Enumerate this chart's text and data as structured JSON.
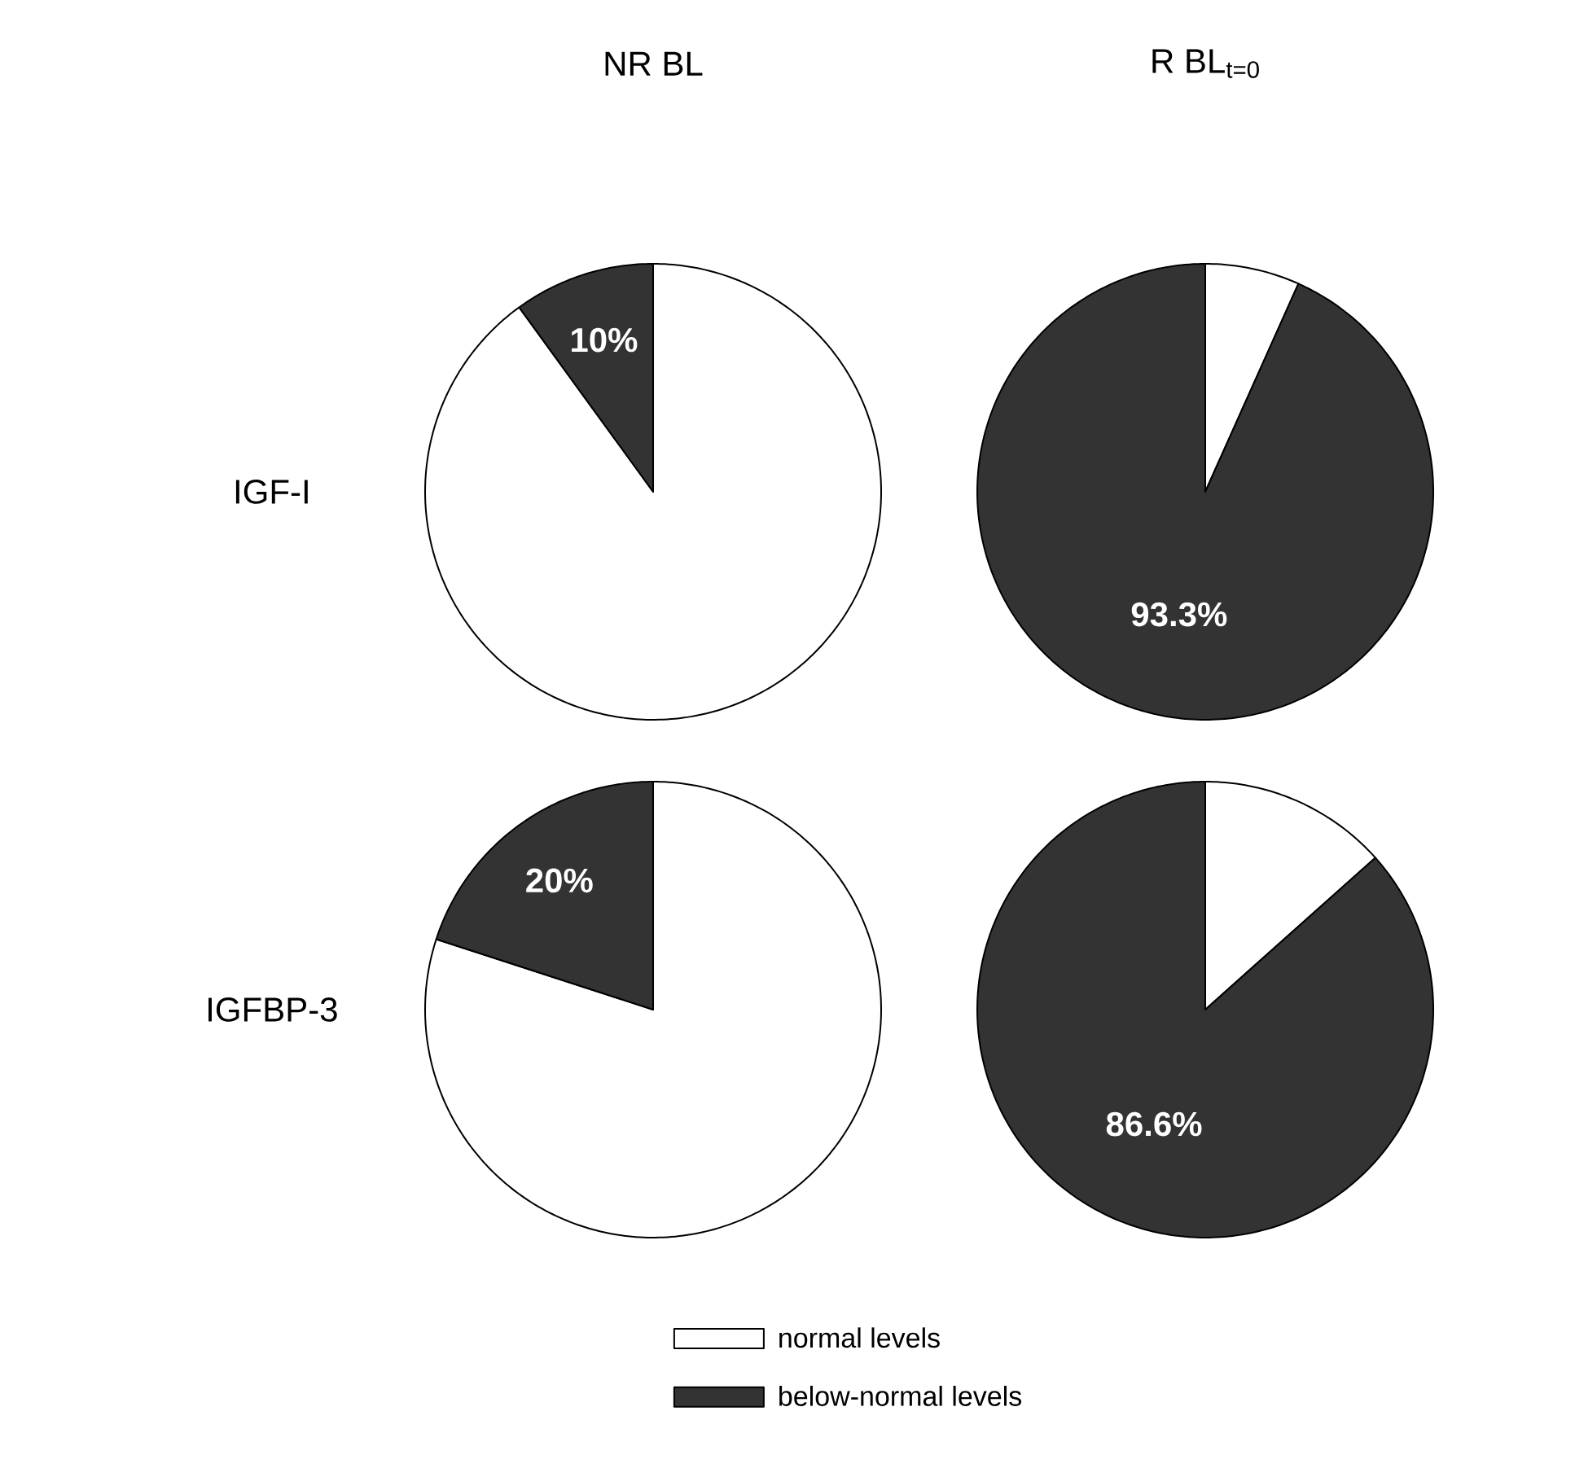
{
  "chart_data": [
    {
      "type": "pie",
      "title": "NR BL",
      "ylabel": "IGF-I",
      "categories": [
        null,
        null
      ],
      "values": [
        90,
        10
      ],
      "colors": [
        "#ffffff",
        "#333333"
      ],
      "value_labels": [
        null,
        "10%"
      ]
    },
    {
      "type": "pie",
      "title": "R BL$_{t=0}$",
      "categories": [
        null,
        null
      ],
      "values": [
        6.7,
        93.3
      ],
      "colors": [
        "#ffffff",
        "#333333"
      ],
      "value_labels": [
        null,
        "93.3%"
      ]
    },
    {
      "type": "pie",
      "ylabel": "IGFBP-3",
      "categories": [
        "normal levels",
        "below-normal levels"
      ],
      "values": [
        80,
        20
      ],
      "colors": [
        "#ffffff",
        "#333333"
      ],
      "value_labels": [
        null,
        "20%"
      ],
      "legend": "bottom"
    },
    {
      "type": "pie",
      "categories": [
        null,
        null
      ],
      "values": [
        13.4,
        86.6
      ],
      "colors": [
        "#ffffff",
        "#333333"
      ],
      "value_labels": [
        null,
        "86.6%"
      ]
    }
  ]
}
